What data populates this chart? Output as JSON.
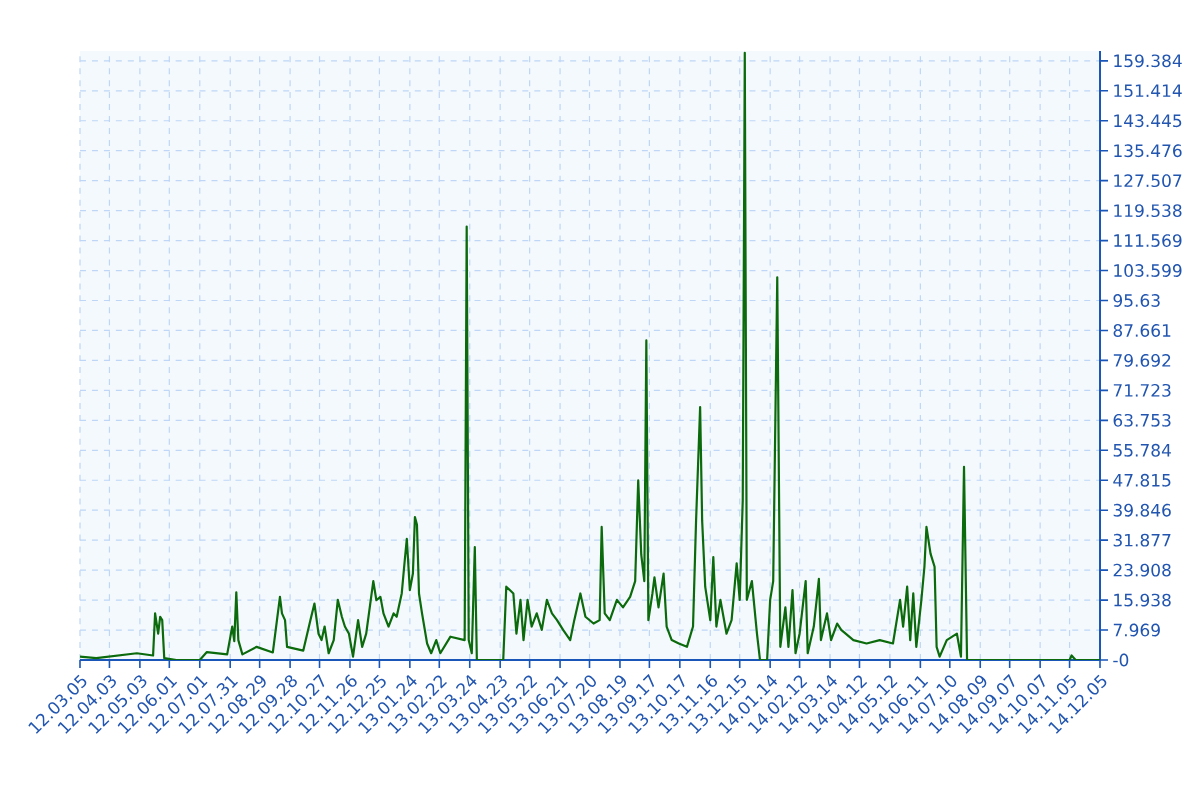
{
  "chart_data": {
    "type": "line",
    "color": "#0b6a0b",
    "line_style": "solid",
    "grid": true,
    "xlim": [
      "2012-03-05",
      "2014-12-05"
    ],
    "ylim": [
      0,
      162
    ],
    "xticks": [
      {
        "value": "2012-03-05",
        "label": "12.03.05"
      },
      {
        "value": "2012-04-03",
        "label": "12.04.03"
      },
      {
        "value": "2012-05-03",
        "label": "12.05.03"
      },
      {
        "value": "2012-06-01",
        "label": "12.06.01"
      },
      {
        "value": "2012-07-01",
        "label": "12.07.01"
      },
      {
        "value": "2012-07-31",
        "label": "12.07.31"
      },
      {
        "value": "2012-08-29",
        "label": "12.08.29"
      },
      {
        "value": "2012-09-28",
        "label": "12.09.28"
      },
      {
        "value": "2012-10-27",
        "label": "12.10.27"
      },
      {
        "value": "2012-11-26",
        "label": "12.11.26"
      },
      {
        "value": "2012-12-25",
        "label": "12.12.25"
      },
      {
        "value": "2013-01-24",
        "label": "13.01.24"
      },
      {
        "value": "2013-02-22",
        "label": "13.02.22"
      },
      {
        "value": "2013-03-24",
        "label": "13.03.24"
      },
      {
        "value": "2013-04-23",
        "label": "13.04.23"
      },
      {
        "value": "2013-05-22",
        "label": "13.05.22"
      },
      {
        "value": "2013-06-21",
        "label": "13.06.21"
      },
      {
        "value": "2013-07-20",
        "label": "13.07.20"
      },
      {
        "value": "2013-08-19",
        "label": "13.08.19"
      },
      {
        "value": "2013-09-17",
        "label": "13.09.17"
      },
      {
        "value": "2013-10-17",
        "label": "13.10.17"
      },
      {
        "value": "2013-11-16",
        "label": "13.11.16"
      },
      {
        "value": "2013-12-15",
        "label": "13.12.15"
      },
      {
        "value": "2014-01-14",
        "label": "14.01.14"
      },
      {
        "value": "2014-02-12",
        "label": "14.02.12"
      },
      {
        "value": "2014-03-14",
        "label": "14.03.14"
      },
      {
        "value": "2014-04-12",
        "label": "14.04.12"
      },
      {
        "value": "2014-05-12",
        "label": "14.05.12"
      },
      {
        "value": "2014-06-11",
        "label": "14.06.11"
      },
      {
        "value": "2014-07-10",
        "label": "14.07.10"
      },
      {
        "value": "2014-08-09",
        "label": "14.08.09"
      },
      {
        "value": "2014-09-07",
        "label": "14.09.07"
      },
      {
        "value": "2014-10-07",
        "label": "14.10.07"
      },
      {
        "value": "2014-11-05",
        "label": "14.11.05"
      },
      {
        "value": "2014-12-05",
        "label": "14.12.05"
      }
    ],
    "yticks": [
      {
        "value": 0,
        "label": "-0"
      },
      7.969,
      15.938,
      23.908,
      31.877,
      39.846,
      47.815,
      55.784,
      63.753,
      71.723,
      79.692,
      87.661,
      95.63,
      103.599,
      111.569,
      119.538,
      127.507,
      135.476,
      143.445,
      151.414,
      159.384
    ],
    "x": [
      "2012-03-05",
      "2012-03-21",
      "2012-04-30",
      "2012-05-16",
      "2012-05-18",
      "2012-05-21",
      "2012-05-23",
      "2012-05-25",
      "2012-05-27",
      "2012-06-08",
      "2012-07-01",
      "2012-07-08",
      "2012-07-28",
      "2012-08-02",
      "2012-08-04",
      "2012-08-06",
      "2012-08-08",
      "2012-08-12",
      "2012-08-26",
      "2012-09-11",
      "2012-09-18",
      "2012-09-20",
      "2012-09-23",
      "2012-09-25",
      "2012-10-11",
      "2012-10-18",
      "2012-10-22",
      "2012-10-26",
      "2012-10-29",
      "2012-11-01",
      "2012-11-05",
      "2012-11-10",
      "2012-11-14",
      "2012-11-18",
      "2012-11-21",
      "2012-11-25",
      "2012-11-29",
      "2012-12-04",
      "2012-12-08",
      "2012-12-12",
      "2012-12-19",
      "2012-12-22",
      "2012-12-26",
      "2012-12-29",
      "2013-01-03",
      "2013-01-08",
      "2013-01-11",
      "2013-01-16",
      "2013-01-19",
      "2013-01-21",
      "2013-01-24",
      "2013-01-27",
      "2013-01-29",
      "2013-01-31",
      "2013-02-02",
      "2013-02-05",
      "2013-02-10",
      "2013-02-14",
      "2013-02-19",
      "2013-02-23",
      "2013-03-05",
      "2013-03-19",
      "2013-03-21",
      "2013-03-23",
      "2013-03-26",
      "2013-03-29",
      "2013-03-31",
      "2013-04-26",
      "2013-04-29",
      "2013-05-06",
      "2013-05-09",
      "2013-05-13",
      "2013-05-16",
      "2013-05-20",
      "2013-05-24",
      "2013-05-29",
      "2013-06-03",
      "2013-06-08",
      "2013-06-13",
      "2013-06-18",
      "2013-06-24",
      "2013-07-01",
      "2013-07-05",
      "2013-07-11",
      "2013-07-16",
      "2013-07-24",
      "2013-07-30",
      "2013-08-01",
      "2013-08-04",
      "2013-08-09",
      "2013-08-16",
      "2013-08-22",
      "2013-08-29",
      "2013-09-03",
      "2013-09-06",
      "2013-09-09",
      "2013-09-12",
      "2013-09-14",
      "2013-09-16",
      "2013-09-20",
      "2013-09-22",
      "2013-09-26",
      "2013-10-01",
      "2013-10-04",
      "2013-10-09",
      "2013-10-16",
      "2013-10-24",
      "2013-10-30",
      "2013-11-02",
      "2013-11-06",
      "2013-11-08",
      "2013-11-11",
      "2013-11-16",
      "2013-11-19",
      "2013-11-22",
      "2013-11-26",
      "2013-12-02",
      "2013-12-07",
      "2013-12-12",
      "2013-12-15",
      "2013-12-18",
      "2013-12-20",
      "2013-12-22",
      "2013-12-27",
      "2014-01-01",
      "2014-01-04",
      "2014-01-11",
      "2014-01-14",
      "2014-01-17",
      "2014-01-21",
      "2014-01-24",
      "2014-01-29",
      "2014-02-01",
      "2014-02-05",
      "2014-02-08",
      "2014-02-12",
      "2014-02-18",
      "2014-02-20",
      "2014-02-26",
      "2014-03-03",
      "2014-03-05",
      "2014-03-11",
      "2014-03-15",
      "2014-03-21",
      "2014-03-25",
      "2014-04-06",
      "2014-04-19",
      "2014-05-02",
      "2014-05-15",
      "2014-05-22",
      "2014-05-25",
      "2014-05-29",
      "2014-06-01",
      "2014-06-04",
      "2014-06-07",
      "2014-06-12",
      "2014-06-15",
      "2014-06-17",
      "2014-06-21",
      "2014-06-25",
      "2014-06-27",
      "2014-06-30",
      "2014-07-07",
      "2014-07-17",
      "2014-07-21",
      "2014-07-24",
      "2014-07-27",
      "2014-11-05",
      "2014-11-07",
      "2014-11-11",
      "2014-12-05"
    ],
    "values": [
      0.9,
      0.5,
      1.8,
      1.2,
      12.4,
      7,
      11.5,
      10.6,
      0.5,
      0,
      0,
      2.1,
      1.5,
      8.9,
      5,
      18,
      5.3,
      1.5,
      3.5,
      2,
      16.8,
      12.4,
      10.6,
      3.5,
      2.5,
      10.6,
      15,
      7,
      5.3,
      8.9,
      1.8,
      5.3,
      16,
      11.5,
      8.9,
      7,
      0.9,
      10.6,
      3.5,
      7,
      21,
      15.9,
      16.8,
      12.4,
      8.9,
      12.4,
      11.5,
      17.7,
      26.6,
      32.2,
      18.6,
      23,
      38,
      36,
      17.7,
      12.4,
      4.4,
      1.8,
      5.3,
      1.8,
      6.2,
      5.3,
      115.3,
      5.3,
      1.8,
      30,
      0,
      0,
      19.5,
      17.7,
      7,
      16,
      5.3,
      16,
      8.9,
      12.4,
      8,
      16,
      12.4,
      10.6,
      8,
      5.3,
      10.6,
      17.7,
      11.5,
      9.7,
      10.6,
      35.4,
      12.4,
      10.6,
      16,
      14,
      16.8,
      21,
      47.8,
      28,
      21,
      85,
      10.6,
      17.7,
      22,
      14,
      23,
      8.9,
      5.3,
      4.4,
      3.5,
      8.9,
      37,
      67.3,
      37,
      19.5,
      10.6,
      27.4,
      8.9,
      16,
      7,
      10.6,
      25.7,
      16,
      42.5,
      161.5,
      16,
      21,
      7,
      0,
      0,
      16,
      21,
      101.8,
      3.5,
      14,
      3.5,
      18.6,
      1.8,
      7,
      21,
      1.8,
      8.9,
      21.6,
      5.3,
      12.4,
      5.3,
      9.7,
      8,
      5.3,
      4.4,
      5.3,
      4.4,
      16,
      8.9,
      19.5,
      5.3,
      17.7,
      3.5,
      16,
      24.8,
      35.4,
      28.3,
      24.8,
      3.5,
      0.9,
      5.3,
      7,
      0.9,
      51.4,
      0,
      0,
      1.2,
      0,
      0
    ]
  }
}
